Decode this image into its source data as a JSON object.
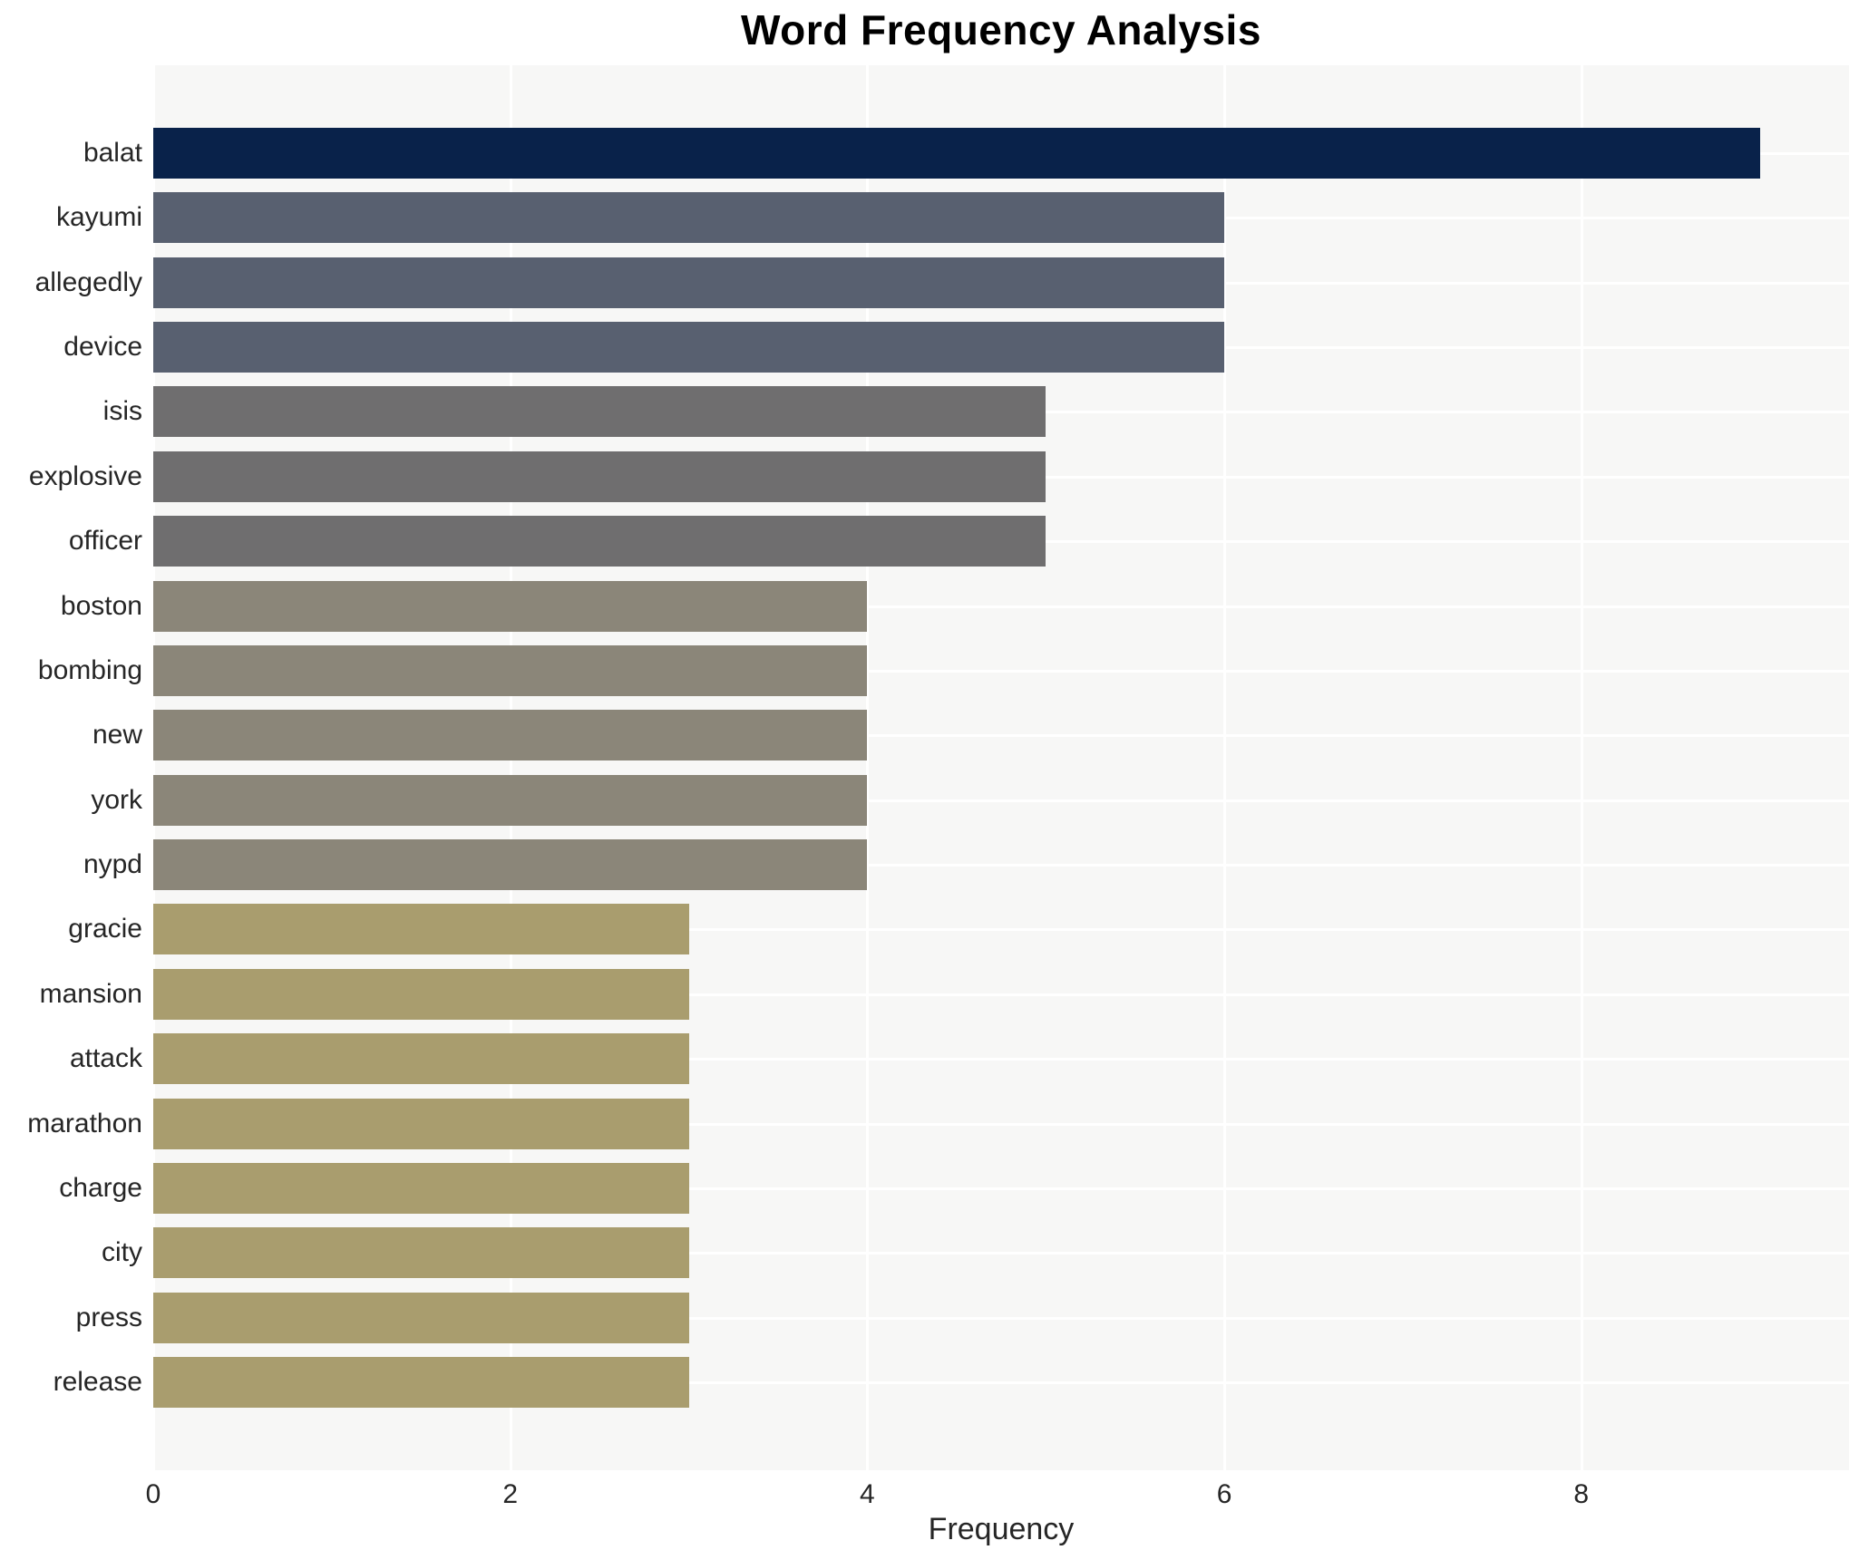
{
  "title": "Word Frequency Analysis",
  "chart_data": {
    "type": "bar",
    "orientation": "horizontal",
    "title": "Word Frequency Analysis",
    "xlabel": "Frequency",
    "ylabel": "",
    "categories": [
      "balat",
      "kayumi",
      "allegedly",
      "device",
      "isis",
      "explosive",
      "officer",
      "boston",
      "bombing",
      "new",
      "york",
      "nypd",
      "gracie",
      "mansion",
      "attack",
      "marathon",
      "charge",
      "city",
      "press",
      "release"
    ],
    "values": [
      9,
      6,
      6,
      6,
      5,
      5,
      5,
      4,
      4,
      4,
      4,
      4,
      3,
      3,
      3,
      3,
      3,
      3,
      3,
      3
    ],
    "bar_colors": [
      "#09224a",
      "#586070",
      "#586070",
      "#586070",
      "#6f6e6f",
      "#6f6e6f",
      "#6f6e6f",
      "#8b8679",
      "#8b8679",
      "#8b8679",
      "#8b8679",
      "#8b8679",
      "#a99d6e",
      "#a99d6e",
      "#a99d6e",
      "#a99d6e",
      "#a99d6e",
      "#a99d6e",
      "#a99d6e",
      "#a99d6e"
    ],
    "xticks": [
      0,
      2,
      4,
      6,
      8
    ],
    "xlim": [
      0,
      9.5
    ],
    "grid": true,
    "legend": false,
    "plot_bg_color": "#f7f7f6",
    "grid_color": "#ffffff",
    "text_color": "#262626"
  }
}
